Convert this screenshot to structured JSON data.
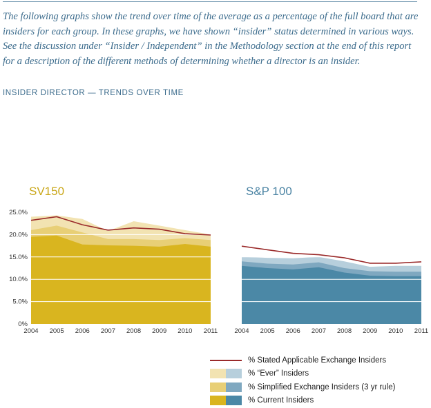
{
  "intro_text": "The following graphs show the trend over time of the average as a percentage of the full board that are insiders for each group. In these graphs, we have shown “insider” status determined in various ways. See the discussion under “Insider / Independent” in the Methodology section at the end of this report for a description of the different methods of determining whether a director is an insider.",
  "section_title": "INSIDER DIRECTOR — TRENDS OVER TIME",
  "colors": {
    "sv_current": "#d9b51f",
    "sv_simplified": "#e8cf76",
    "sv_ever": "#f2e3b2",
    "sp_current": "#4b88a6",
    "sp_simplified": "#7fa8c0",
    "sp_ever": "#b7cfdc",
    "stated_line": "#9a2a2a"
  },
  "legend": {
    "stated": "% Stated Applicable Exchange Insiders",
    "ever": "% “Ever” Insiders",
    "simplified": "% Simplified Exchange Insiders (3 yr rule)",
    "current": "% Current Insiders"
  },
  "chart_data": [
    {
      "type": "area",
      "title": "SV150",
      "x": [
        "2004",
        "2005",
        "2006",
        "2007",
        "2008",
        "2009",
        "2010",
        "2011"
      ],
      "y_tick_labels": [
        "0%",
        "5.0%",
        "10.0%",
        "15.0%",
        "20.0%",
        "25.0%"
      ],
      "ylim": [
        0,
        25
      ],
      "series": [
        {
          "name": "% Current Insiders",
          "values": [
            19.5,
            19.8,
            17.8,
            17.6,
            17.5,
            17.3,
            17.9,
            17.3
          ]
        },
        {
          "name": "% Simplified Exchange Insiders (3 yr rule)",
          "values": [
            21.0,
            22.0,
            20.5,
            19.0,
            19.0,
            18.8,
            19.2,
            18.8
          ]
        },
        {
          "name": "% “Ever” Insiders",
          "values": [
            24.0,
            24.3,
            23.5,
            20.8,
            23.0,
            22.0,
            21.0,
            20.0
          ]
        },
        {
          "name": "% Stated Applicable Exchange Insiders",
          "values": [
            23.2,
            24.0,
            22.2,
            21.0,
            21.5,
            21.2,
            20.2,
            19.9
          ]
        }
      ]
    },
    {
      "type": "area",
      "title": "S&P 100",
      "x": [
        "2004",
        "2005",
        "2006",
        "2007",
        "2008",
        "2009",
        "2010",
        "2011"
      ],
      "ylim": [
        0,
        25
      ],
      "series": [
        {
          "name": "% Current Insiders",
          "values": [
            13.0,
            12.5,
            12.2,
            12.7,
            11.5,
            10.8,
            10.7,
            10.7
          ]
        },
        {
          "name": "% Simplified Exchange Insiders (3 yr rule)",
          "values": [
            14.0,
            13.5,
            13.3,
            13.8,
            12.5,
            11.8,
            11.7,
            11.7
          ]
        },
        {
          "name": "% “Ever” Insiders",
          "values": [
            15.0,
            14.8,
            14.7,
            15.0,
            14.0,
            12.8,
            13.0,
            13.0
          ]
        },
        {
          "name": "% Stated Applicable Exchange Insiders",
          "values": [
            17.4,
            16.6,
            15.8,
            15.5,
            14.8,
            13.6,
            13.6,
            13.9
          ]
        }
      ]
    }
  ]
}
